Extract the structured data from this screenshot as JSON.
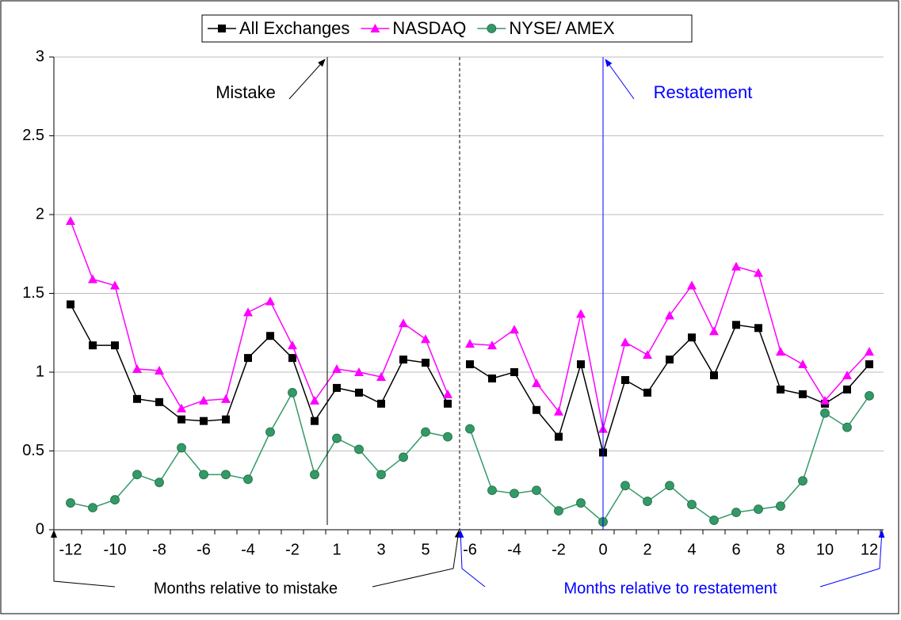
{
  "chart_data": [
    {
      "type": "line",
      "ylim": [
        0,
        3
      ],
      "yticks": [
        0,
        0.5,
        1,
        1.5,
        2,
        2.5,
        3
      ],
      "grid": true,
      "annotation": "Mistake",
      "x_label": "Months relative to mistake",
      "color": "#000000",
      "categories": [
        "-12",
        null,
        "-10",
        null,
        "-8",
        null,
        "-6",
        null,
        "-4",
        null,
        "-2",
        null,
        "1",
        null,
        "3",
        null,
        "5",
        null
      ],
      "series": [
        {
          "name": "All Exchanges",
          "color": "#000000",
          "marker": "square",
          "values": [
            1.43,
            1.17,
            1.17,
            0.83,
            0.81,
            0.7,
            0.69,
            0.7,
            1.09,
            1.23,
            1.09,
            0.69,
            0.9,
            0.87,
            0.8,
            1.08,
            1.06,
            0.8
          ]
        },
        {
          "name": "NASDAQ",
          "color": "#ff00ff",
          "marker": "triangle",
          "values": [
            1.96,
            1.59,
            1.55,
            1.02,
            1.01,
            0.77,
            0.82,
            0.83,
            1.38,
            1.45,
            1.17,
            0.82,
            1.02,
            1.0,
            0.97,
            1.31,
            1.21,
            0.86
          ]
        },
        {
          "name": "NYSE/ AMEX",
          "color": "#339966",
          "marker": "circle",
          "values": [
            0.17,
            0.14,
            0.19,
            0.35,
            0.3,
            0.52,
            0.35,
            0.35,
            0.32,
            0.62,
            0.87,
            0.35,
            0.58,
            0.51,
            0.35,
            0.46,
            0.62,
            0.59
          ]
        }
      ]
    },
    {
      "type": "line",
      "annotation": "Restatement",
      "x_label": "Months relative to restatement",
      "color": "#0000ff",
      "categories": [
        "-6",
        null,
        "-4",
        null,
        "-2",
        null,
        "0",
        null,
        "2",
        null,
        "4",
        null,
        "6",
        null,
        "8",
        null,
        "10",
        null,
        "12"
      ],
      "series": [
        {
          "color": "#000000",
          "marker": "square",
          "values": [
            1.05,
            0.96,
            1.0,
            0.76,
            0.59,
            1.05,
            0.49,
            0.95,
            0.87,
            1.08,
            1.22,
            0.98,
            1.3,
            1.28,
            0.89,
            0.86,
            0.8,
            0.89,
            1.05
          ]
        },
        {
          "color": "#ff00ff",
          "marker": "triangle",
          "values": [
            1.18,
            1.17,
            1.27,
            0.93,
            0.75,
            1.37,
            0.64,
            1.19,
            1.11,
            1.36,
            1.55,
            1.26,
            1.67,
            1.63,
            1.13,
            1.05,
            0.82,
            0.98,
            1.13
          ]
        },
        {
          "color": "#339966",
          "marker": "circle",
          "values": [
            0.64,
            0.25,
            0.23,
            0.25,
            0.12,
            0.17,
            0.05,
            0.28,
            0.18,
            0.28,
            0.16,
            0.06,
            0.11,
            0.13,
            0.15,
            0.31,
            0.74,
            0.65,
            0.85
          ]
        }
      ]
    }
  ]
}
